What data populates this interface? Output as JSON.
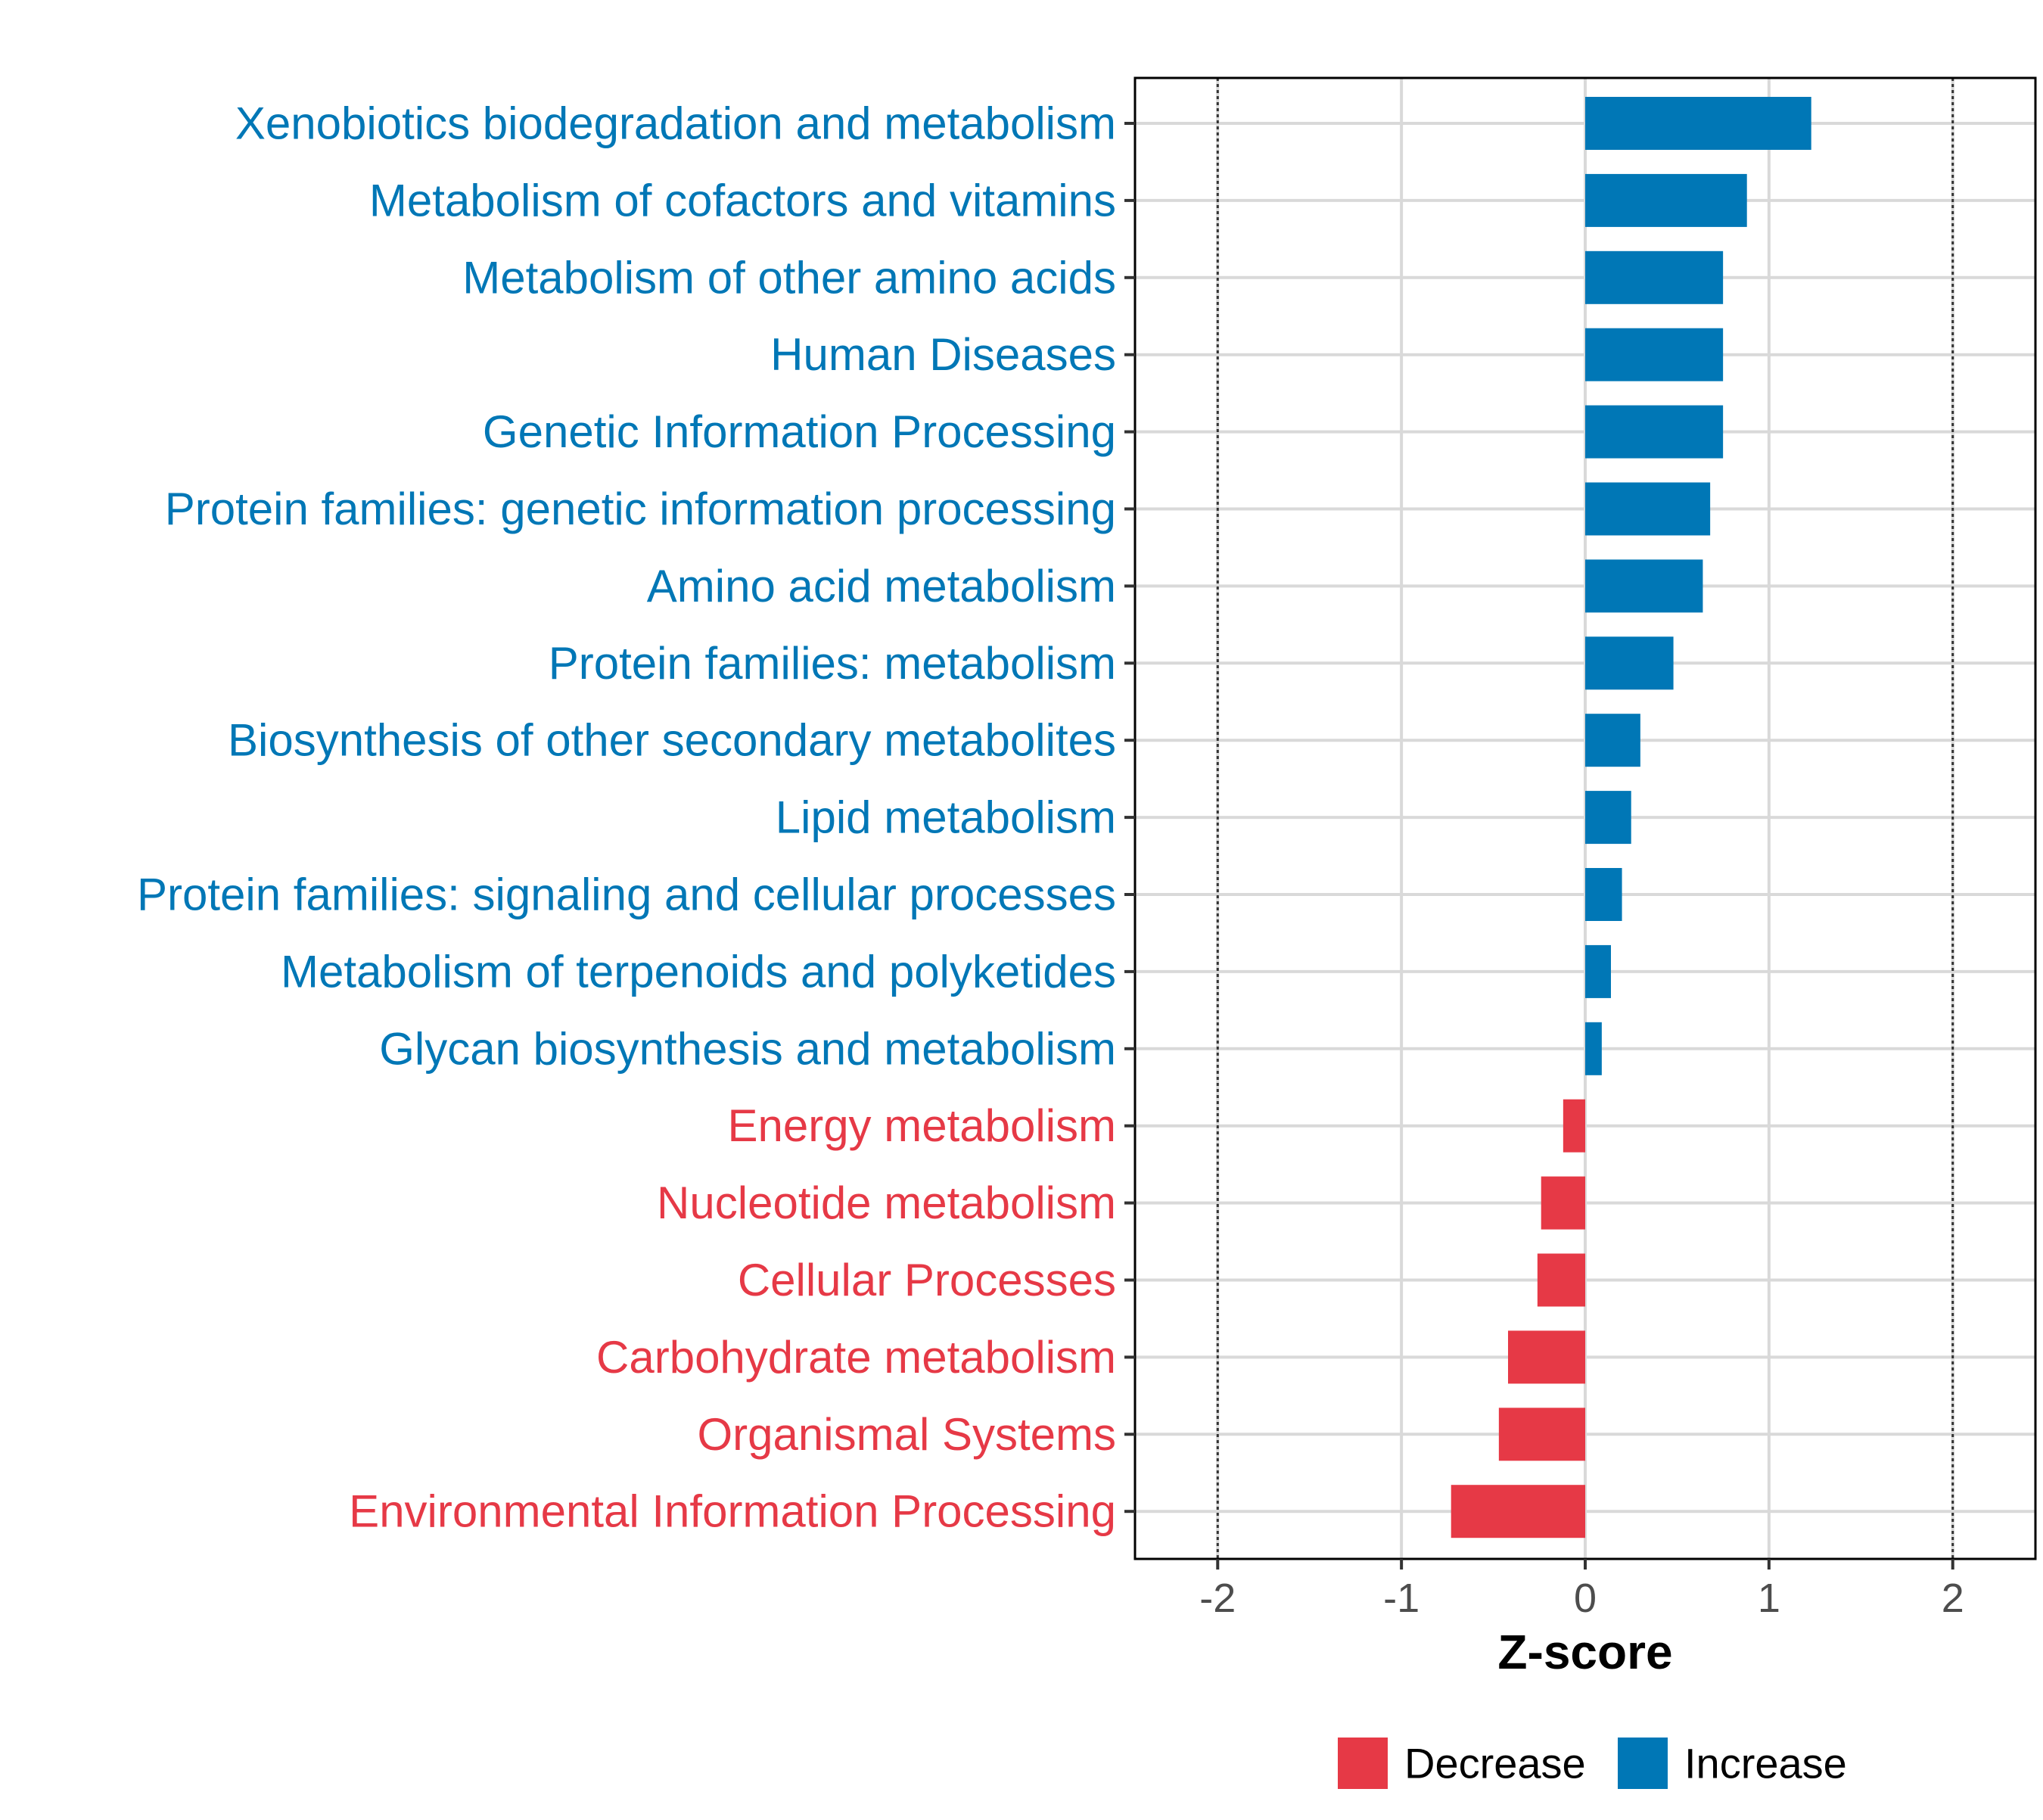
{
  "chart_data": {
    "type": "bar",
    "orientation": "horizontal",
    "title": "",
    "xlabel": "Z-score",
    "ylabel": "",
    "xlim": [
      -2.45,
      2.45
    ],
    "xticks": [
      -2,
      -1,
      0,
      1,
      2
    ],
    "xtick_labels": [
      "-2",
      "-1",
      "0",
      "1",
      "2"
    ],
    "reference_lines": [
      -2,
      2
    ],
    "grid": true,
    "legend_position": "bottom",
    "legend": [
      {
        "name": "Decrease",
        "color": "#E63946"
      },
      {
        "name": "Increase",
        "color": "#0077B6"
      }
    ],
    "categories": [
      "Xenobiotics biodegradation and metabolism",
      "Metabolism of cofactors and vitamins",
      "Metabolism of other amino acids",
      "Human Diseases",
      "Genetic Information Processing",
      "Protein families: genetic information processing",
      "Amino acid metabolism",
      "Protein families: metabolism",
      "Biosynthesis of other secondary metabolites",
      "Lipid metabolism",
      "Protein families: signaling and cellular processes",
      "Metabolism of terpenoids and polyketides",
      "Glycan biosynthesis and metabolism",
      "Energy metabolism",
      "Nucleotide metabolism",
      "Cellular Processes",
      "Carbohydrate metabolism",
      "Organismal Systems",
      "Environmental Information Processing"
    ],
    "values": [
      1.23,
      0.88,
      0.75,
      0.75,
      0.75,
      0.68,
      0.64,
      0.48,
      0.3,
      0.25,
      0.2,
      0.14,
      0.09,
      -0.12,
      -0.24,
      -0.26,
      -0.42,
      -0.47,
      -0.73
    ],
    "groups": [
      "Increase",
      "Increase",
      "Increase",
      "Increase",
      "Increase",
      "Increase",
      "Increase",
      "Increase",
      "Increase",
      "Increase",
      "Increase",
      "Increase",
      "Increase",
      "Decrease",
      "Decrease",
      "Decrease",
      "Decrease",
      "Decrease",
      "Decrease"
    ]
  }
}
